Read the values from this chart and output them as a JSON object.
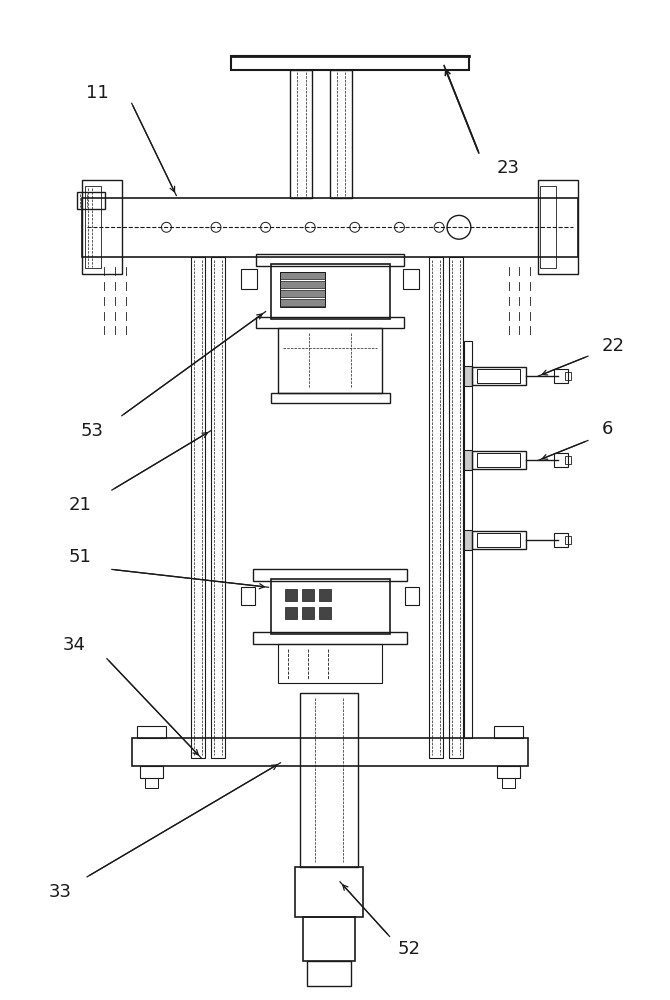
{
  "bg_color": "#ffffff",
  "line_color": "#1a1a1a",
  "label_color": "#1a1a1a",
  "fig_width": 6.7,
  "fig_height": 10.0,
  "dpi": 100
}
